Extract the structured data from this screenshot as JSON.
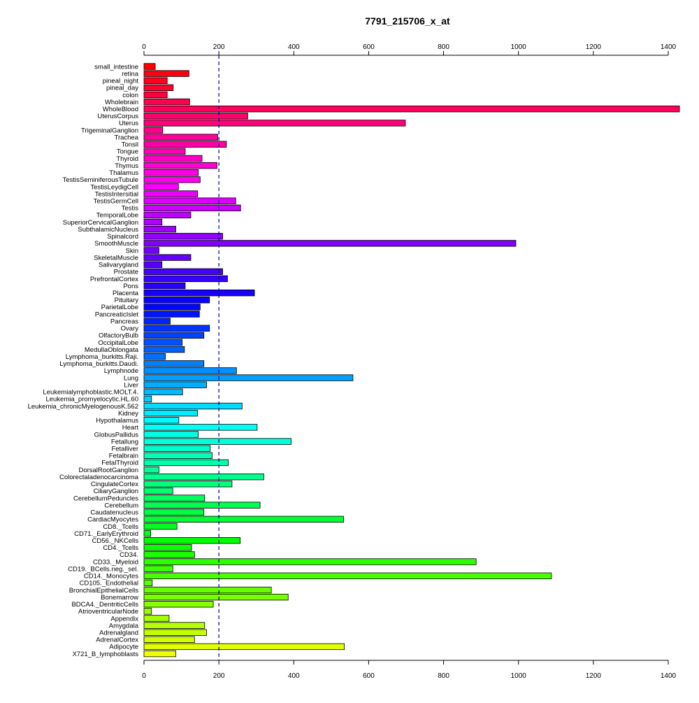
{
  "chart_data": {
    "type": "bar",
    "orientation": "horizontal",
    "title": "7791_215706_x_at",
    "xlabel": "",
    "ylabel": "",
    "xlim": [
      0,
      1400
    ],
    "x_ticks": [
      "0",
      "200",
      "400",
      "600",
      "800",
      "1000",
      "1200",
      "1400"
    ],
    "reference_line": 200,
    "grid": false,
    "legend": "none",
    "categories": [
      "small_intestine",
      "retina",
      "pineal_night",
      "pineal_day",
      "colon",
      "Wholebrain",
      "WholeBlood",
      "UterusCorpus",
      "Uterus",
      "TrigeminalGanglion",
      "Trachea",
      "Tonsil",
      "Tongue",
      "Thyroid",
      "Thymus",
      "Thalamus",
      "TestisSeminiferousTubule",
      "TestisLeydigCell",
      "TestisIntersitial",
      "TestisGermCell",
      "Testis",
      "TemporalLobe",
      "SuperiorCervicalGanglion",
      "SubthalamicNucleus",
      "Spinalcord",
      "SmoothMuscle",
      "Skin",
      "SkeletalMuscle",
      "Salivarygland",
      "Prostate",
      "PrefrontalCortex",
      "Pons",
      "Placenta",
      "Pituitary",
      "ParietalLobe",
      "PancreaticIslet",
      "Pancreas",
      "Ovary",
      "OlfactoryBulb",
      "OccipitalLobe",
      "MedullaOblongata",
      "Lymphoma_burkitts.Raji.",
      "Lymphoma_burkitts.Daudi.",
      "Lymphnode",
      "Lung",
      "Liver",
      "Leukemialymphoblastic.MOLT.4.",
      "Leukemia_promyelocytic.HL.60",
      "Leukemia_chronicMyelogenousK.562",
      "Kidney",
      "Hypothalamus",
      "Heart",
      "GlobusPallidus",
      "Fetallung",
      "Fetalliver",
      "Fetalbrain",
      "FetalThyroid",
      "DorsalRootGanglion",
      "Colorectaladenocarcinoma",
      "CingulateCortex",
      "CiliaryGanglion",
      "CerebellumPeduncles",
      "Cerebellum",
      "Caudatenucleus",
      "CardiacMyocytes",
      "CD8._Tcells",
      "CD71._EarlyErythroid",
      "CD56._NKCells",
      "CD4._Tcells",
      "CD34.",
      "CD33._Myeloid",
      "CD19._BCells.neg._sel.",
      "CD14._Monocytes",
      "CD105._Endothelial",
      "BronchialEpithelialCells",
      "Bonemarrow",
      "BDCA4._DentriticCells",
      "AtrioventricularNode",
      "Appendix",
      "Amygdala",
      "Adrenalgland",
      "AdrenalCortex",
      "Adipocyte",
      "X721_B_lymphoblasts"
    ],
    "values": [
      30,
      120,
      62,
      78,
      62,
      122,
      1430,
      277,
      698,
      50,
      197,
      220,
      110,
      155,
      195,
      145,
      150,
      92,
      143,
      245,
      258,
      125,
      48,
      85,
      210,
      993,
      40,
      125,
      48,
      210,
      223,
      110,
      295,
      175,
      150,
      148,
      70,
      175,
      160,
      102,
      108,
      57,
      160,
      247,
      558,
      167,
      103,
      20,
      262,
      143,
      93,
      302,
      145,
      393,
      177,
      182,
      225,
      40,
      320,
      235,
      77,
      162,
      310,
      160,
      533,
      88,
      18,
      257,
      127,
      135,
      887,
      77,
      1088,
      22,
      340,
      385,
      185,
      20,
      67,
      162,
      167,
      135,
      535,
      85
    ]
  }
}
